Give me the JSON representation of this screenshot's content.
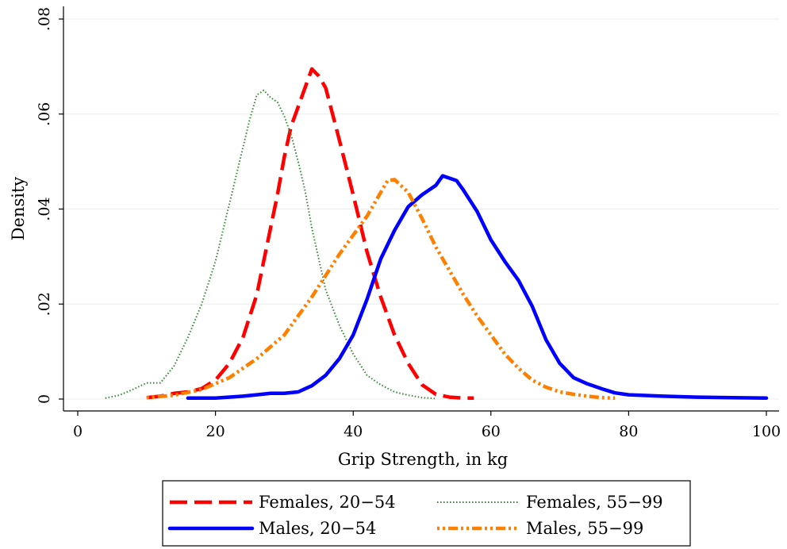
{
  "chart_data": {
    "type": "line",
    "xlabel": "Grip Strength, in kg",
    "ylabel": "Density",
    "xlim": [
      0,
      100
    ],
    "ylim": [
      0,
      0.08
    ],
    "x_ticks": [
      {
        "value": 0,
        "label": "0"
      },
      {
        "value": 20,
        "label": "20"
      },
      {
        "value": 40,
        "label": "40"
      },
      {
        "value": 60,
        "label": "60"
      },
      {
        "value": 80,
        "label": "80"
      },
      {
        "value": 100,
        "label": "100"
      }
    ],
    "y_ticks": [
      {
        "value": 0,
        "label": "0"
      },
      {
        "value": 0.02,
        "label": ".02"
      },
      {
        "value": 0.04,
        "label": ".04"
      },
      {
        "value": 0.06,
        "label": ".06"
      },
      {
        "value": 0.08,
        "label": ".08"
      }
    ],
    "grid": true,
    "legend_position": "bottom",
    "series": [
      {
        "name": "Females, 20−54",
        "color": "#ff0000",
        "style": "dashed",
        "x": [
          10,
          12,
          14,
          16,
          18,
          20,
          22,
          24,
          26,
          28,
          29,
          30,
          31,
          32,
          33,
          34,
          35,
          36,
          37,
          38,
          40,
          42,
          44,
          46,
          48,
          50,
          52,
          54,
          56,
          57.5
        ],
        "y": [
          0.0003,
          0.0006,
          0.0012,
          0.0015,
          0.0022,
          0.004,
          0.0075,
          0.013,
          0.022,
          0.036,
          0.043,
          0.051,
          0.0575,
          0.0615,
          0.0655,
          0.0695,
          0.068,
          0.0655,
          0.06,
          0.0545,
          0.043,
          0.031,
          0.0215,
          0.0135,
          0.0075,
          0.003,
          0.001,
          0.0004,
          0.0002,
          0.0002
        ]
      },
      {
        "name": "Females, 55−99",
        "color": "#2e8b2e",
        "style": "dotted",
        "x": [
          4,
          6,
          8,
          10,
          12,
          14,
          16,
          18,
          20,
          22,
          24,
          25,
          26,
          27,
          28,
          29,
          30,
          31,
          32,
          33,
          34,
          36,
          38,
          40,
          42,
          44,
          46,
          48,
          50,
          52
        ],
        "y": [
          0.0002,
          0.0008,
          0.002,
          0.0034,
          0.0034,
          0.007,
          0.013,
          0.02,
          0.029,
          0.041,
          0.053,
          0.059,
          0.064,
          0.065,
          0.0635,
          0.0625,
          0.0595,
          0.0555,
          0.05,
          0.044,
          0.036,
          0.023,
          0.0155,
          0.0095,
          0.005,
          0.003,
          0.0015,
          0.0008,
          0.0003,
          0.0001
        ]
      },
      {
        "name": "Males, 20−54",
        "color": "#0000ff",
        "style": "solid",
        "x": [
          16,
          20,
          24,
          26,
          28,
          30,
          32,
          34,
          36,
          38,
          40,
          42,
          44,
          46,
          48,
          50,
          52,
          53,
          54,
          55,
          56,
          58,
          60,
          62,
          64,
          66,
          68,
          70,
          72,
          74,
          76,
          78,
          80,
          85,
          90,
          95,
          100
        ],
        "y": [
          0.0002,
          0.0002,
          0.0006,
          0.0009,
          0.0012,
          0.0012,
          0.0015,
          0.0028,
          0.005,
          0.0085,
          0.0135,
          0.021,
          0.0295,
          0.0355,
          0.0405,
          0.043,
          0.045,
          0.047,
          0.0465,
          0.046,
          0.044,
          0.0395,
          0.0335,
          0.029,
          0.025,
          0.0195,
          0.0125,
          0.0075,
          0.0045,
          0.0032,
          0.0022,
          0.0013,
          0.0009,
          0.0006,
          0.0004,
          0.0003,
          0.0002
        ]
      },
      {
        "name": "Males, 55−99",
        "color": "#ff8000",
        "style": "dashdot",
        "x": [
          10,
          14,
          18,
          22,
          26,
          30,
          34,
          38,
          40,
          42,
          44,
          45,
          46,
          48,
          50,
          52,
          54,
          56,
          58,
          60,
          62,
          64,
          66,
          68,
          70,
          72,
          74,
          76,
          78
        ],
        "y": [
          0.0003,
          0.0008,
          0.002,
          0.0045,
          0.0085,
          0.0135,
          0.0215,
          0.0305,
          0.0345,
          0.0385,
          0.0435,
          0.046,
          0.0462,
          0.0435,
          0.038,
          0.032,
          0.027,
          0.022,
          0.0175,
          0.0135,
          0.0095,
          0.0065,
          0.004,
          0.0025,
          0.0015,
          0.001,
          0.0006,
          0.0003,
          0.0002
        ]
      }
    ]
  }
}
